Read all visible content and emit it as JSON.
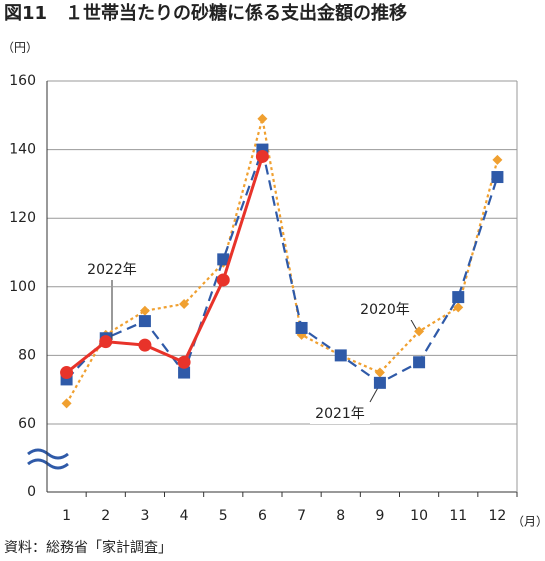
{
  "chart_data": {
    "type": "line",
    "title": "図11　１世帯当たりの砂糖に係る支出金額の推移",
    "y_label": "（円）",
    "x_label": "（月）",
    "source": "資料：総務省「家計調査」",
    "categories": [
      "1",
      "2",
      "3",
      "4",
      "5",
      "6",
      "7",
      "8",
      "9",
      "10",
      "11",
      "12"
    ],
    "series": [
      {
        "name": "2020年",
        "color": "#f0a030",
        "marker": "diamond",
        "dash": "3 3",
        "values": [
          66,
          86,
          93,
          95,
          107,
          149,
          86,
          80,
          75,
          87,
          94,
          137
        ]
      },
      {
        "name": "2021年",
        "color": "#2f5aa8",
        "marker": "square",
        "dash": "10 6",
        "values": [
          73,
          85,
          90,
          75,
          108,
          140,
          88,
          80,
          72,
          78,
          97,
          132
        ]
      },
      {
        "name": "2022年",
        "color": "#e8332a",
        "marker": "circle",
        "dash": "",
        "values": [
          75,
          84,
          83,
          78,
          102,
          138,
          null,
          null,
          null,
          null,
          null,
          null
        ]
      }
    ],
    "ylim": [
      0,
      160
    ],
    "axis_break": [
      0,
      60
    ],
    "yticks": [
      0,
      60,
      80,
      100,
      120,
      140,
      160
    ],
    "grid": true
  }
}
